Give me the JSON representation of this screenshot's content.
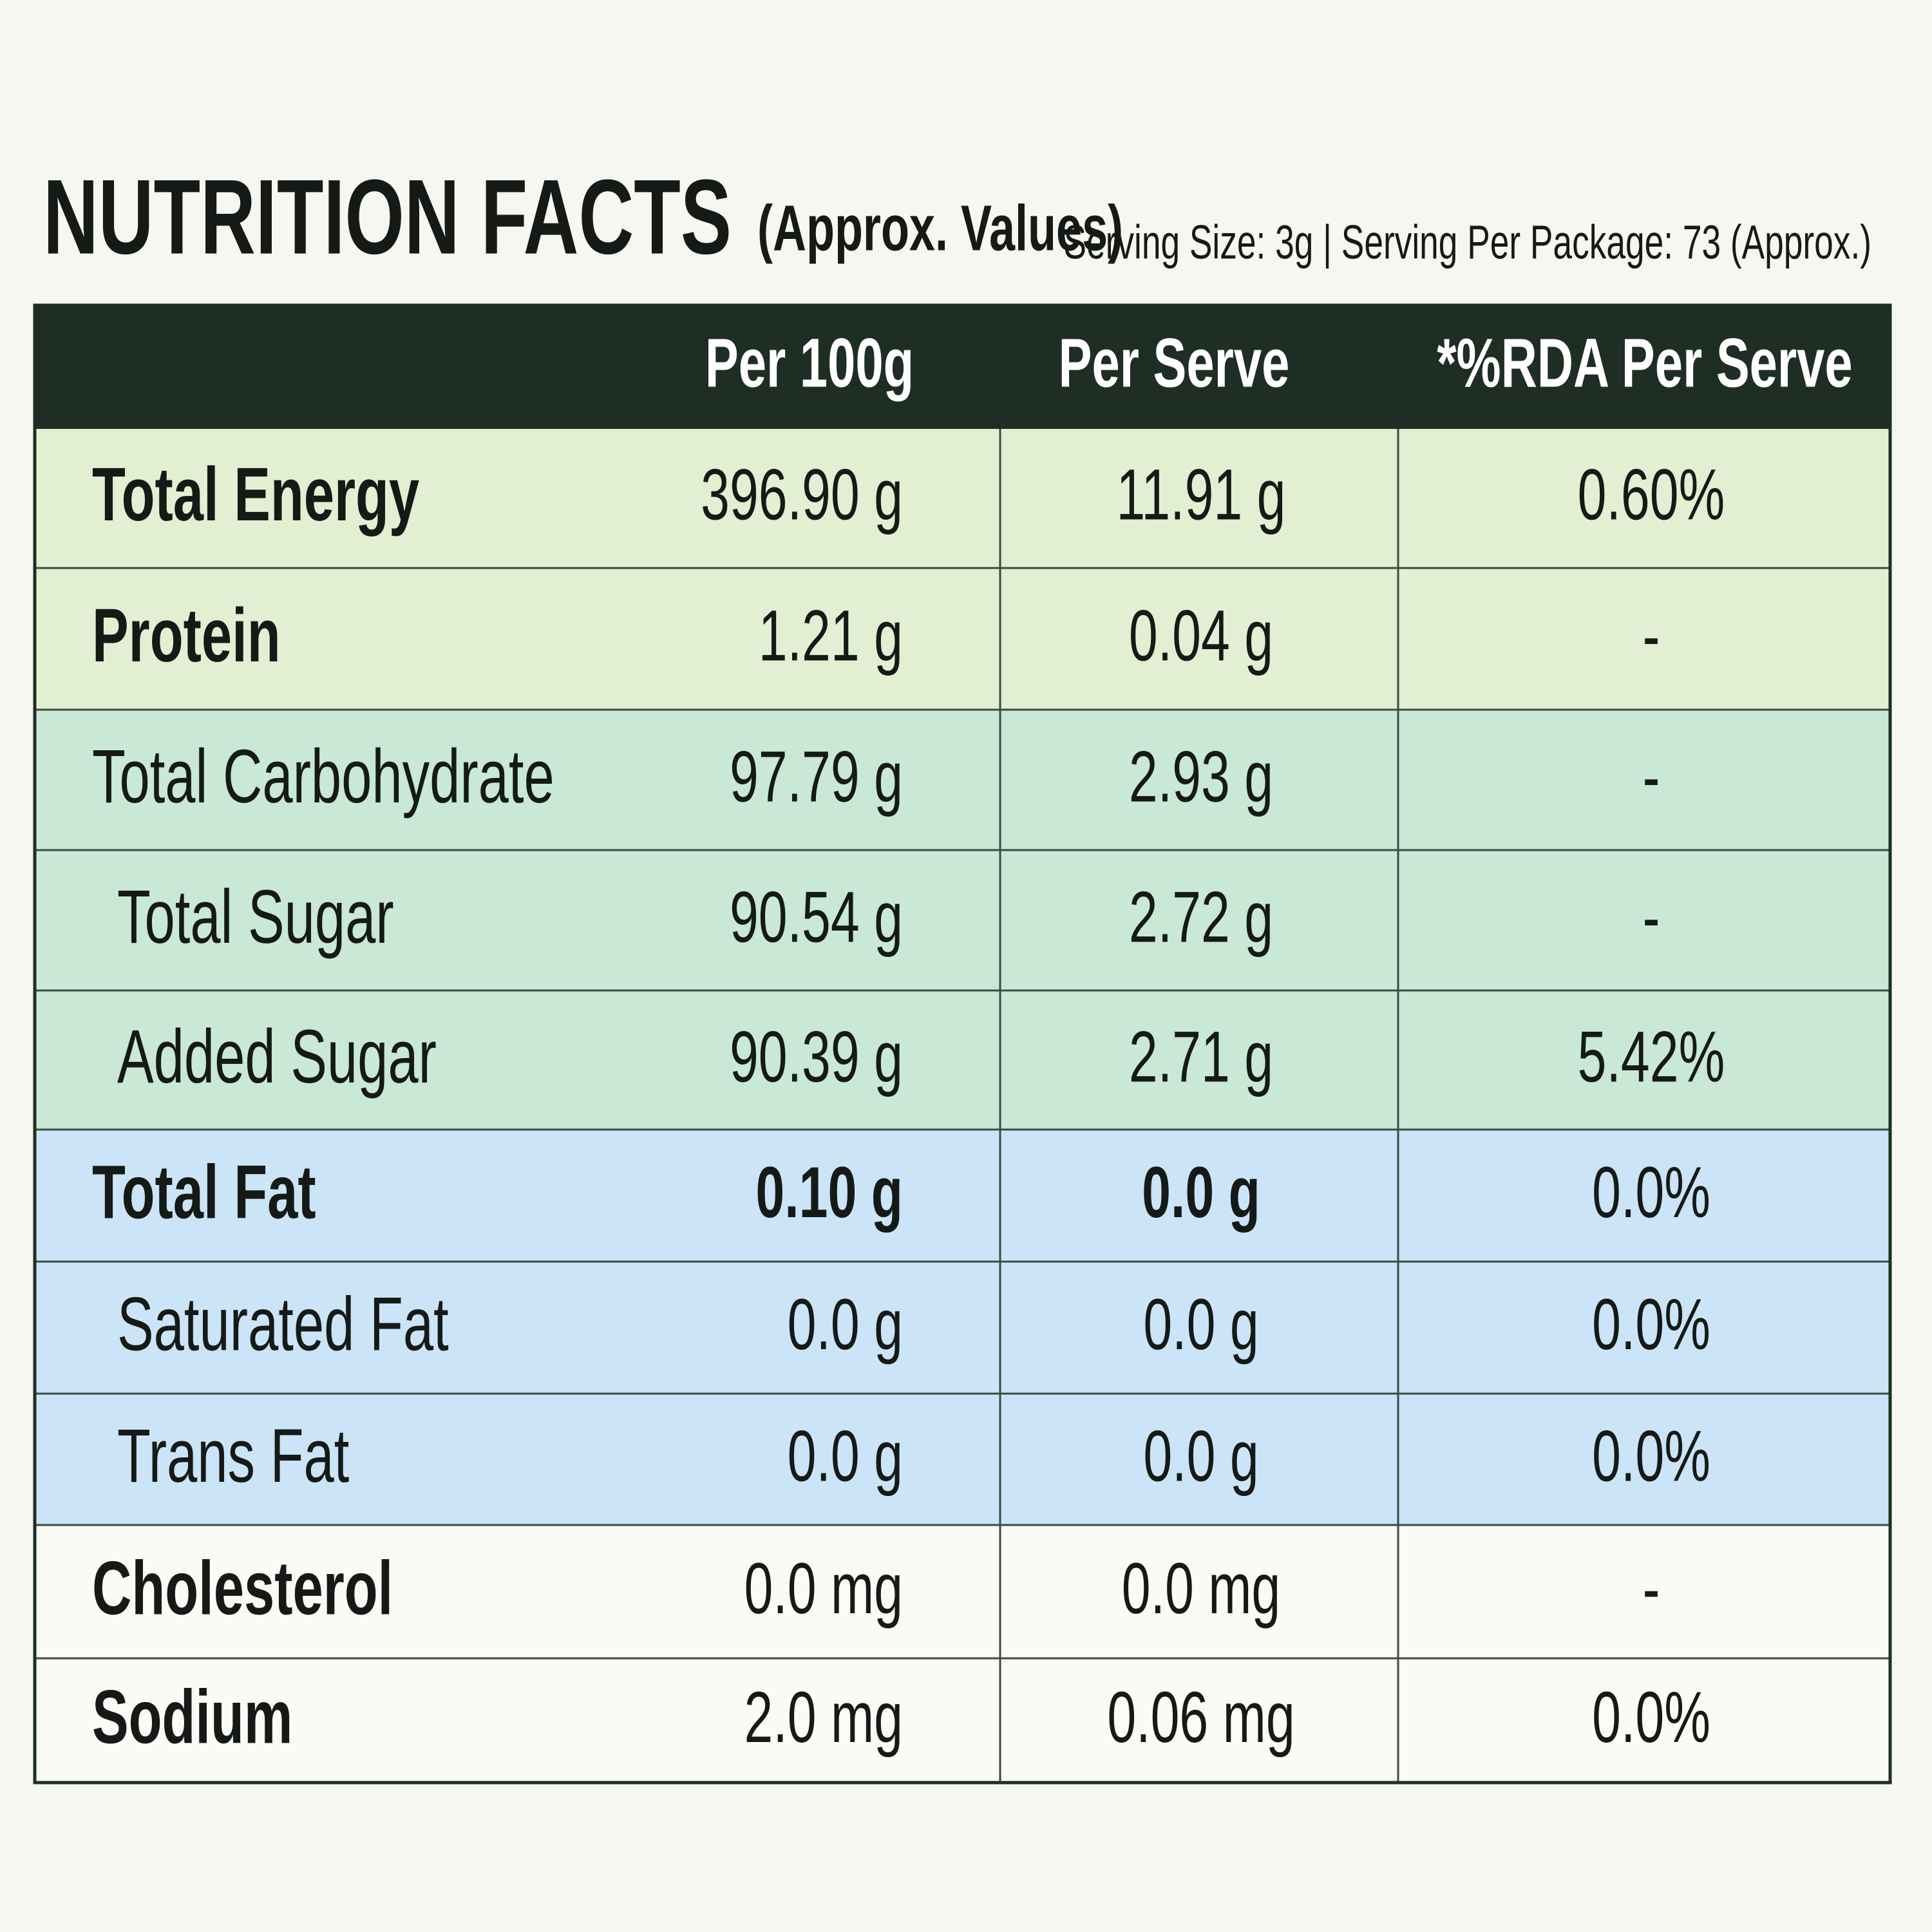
{
  "header": {
    "title": "NUTRITION FACTS",
    "subtitle": "(Approx. Values)",
    "serving": "Serving Size: 3g | Serving Per Package: 73 (Approx.)"
  },
  "table": {
    "columns": [
      "Per 100g",
      "Per Serve",
      "*%RDA Per Serve"
    ],
    "rows": [
      {
        "label": "Total Energy",
        "per100g": "396.90 g",
        "perServe": "11.91 g",
        "rda": "0.60%",
        "bold": true,
        "indent": false,
        "color": "#e3efd3"
      },
      {
        "label": "Protein",
        "per100g": "1.21 g",
        "perServe": "0.04 g",
        "rda": "-",
        "bold": true,
        "indent": false,
        "color": "#e3efd3"
      },
      {
        "label": "Total Carbohydrate",
        "per100g": "97.79 g",
        "perServe": "2.93 g",
        "rda": "-",
        "bold": false,
        "indent": false,
        "color": "#c9e8d6"
      },
      {
        "label": "Total Sugar",
        "per100g": "90.54 g",
        "perServe": "2.72 g",
        "rda": "-",
        "bold": false,
        "indent": true,
        "color": "#c9e8d6"
      },
      {
        "label": "Added Sugar",
        "per100g": "90.39 g",
        "perServe": "2.71 g",
        "rda": "5.42%",
        "bold": false,
        "indent": true,
        "color": "#c9e8d6"
      },
      {
        "label": "Total Fat",
        "per100g": "0.10 g",
        "perServe": "0.0 g",
        "rda": "0.0%",
        "bold": true,
        "indent": false,
        "color": "#cbe4f7"
      },
      {
        "label": "Saturated Fat",
        "per100g": "0.0 g",
        "perServe": "0.0 g",
        "rda": "0.0%",
        "bold": false,
        "indent": true,
        "color": "#cbe4f7"
      },
      {
        "label": "Trans Fat",
        "per100g": "0.0 g",
        "perServe": "0.0 g",
        "rda": "0.0%",
        "bold": false,
        "indent": true,
        "color": "#cbe4f7"
      },
      {
        "label": "Cholesterol",
        "per100g": "0.0 mg",
        "perServe": "0.0 mg",
        "rda": "-",
        "bold": true,
        "indent": false,
        "color": "#fafaf7"
      },
      {
        "label": "Sodium",
        "per100g": "2.0 mg",
        "perServe": "0.06 mg",
        "rda": "0.0%",
        "bold": true,
        "indent": false,
        "color": "#fafaf7"
      }
    ]
  }
}
